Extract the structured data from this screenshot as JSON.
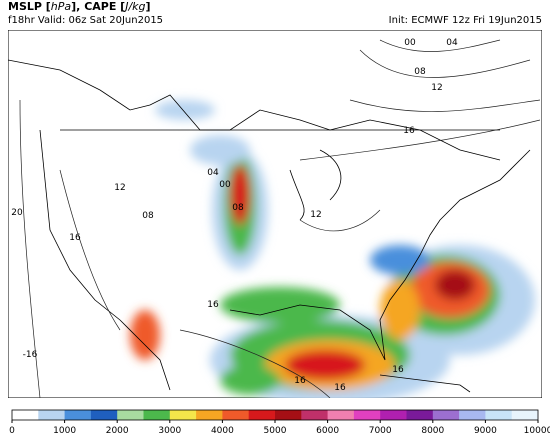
{
  "header": {
    "title": [
      "MSLP [",
      "hPa",
      "], CAPE [",
      "J/kg",
      "]"
    ],
    "valid": "f18hr Valid: 06z Sat 20Jun2015",
    "init": "Init: ECMWF 12z Fri 19Jun2015"
  },
  "colorbar": {
    "range": [
      0,
      10000
    ],
    "ticks": [
      0,
      1000,
      2000,
      3000,
      4000,
      5000,
      6000,
      7000,
      8000,
      9000,
      10000
    ],
    "colors": [
      "#ffffff",
      "#b8d4f0",
      "#4a8fdc",
      "#1f5fbf",
      "#a8dca0",
      "#4cb84c",
      "#f4e64a",
      "#f5a623",
      "#ef5a2a",
      "#d7191c",
      "#a50f15",
      "#c0306a",
      "#f07fb0",
      "#e040c0",
      "#b020b0",
      "#7a1a9a",
      "#9c6fd0",
      "#a8b8f0",
      "#c8e4f8",
      "#e8f4fc"
    ]
  },
  "contour_labels": [
    "00",
    "04",
    "08",
    "12",
    "16",
    "12",
    "20",
    "16",
    "08",
    "12",
    "00",
    "04",
    "08",
    "16",
    "-16",
    "16",
    "16",
    "16"
  ]
}
